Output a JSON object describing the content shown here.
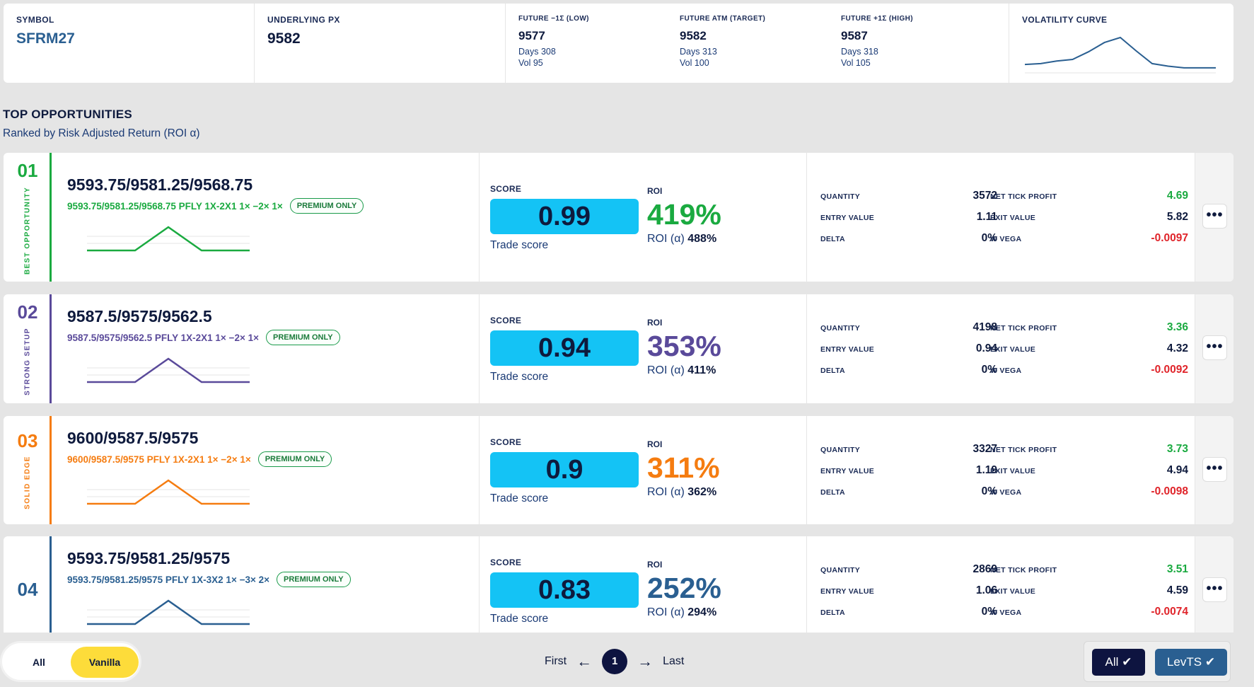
{
  "header": {
    "symbol_label": "SYMBOL",
    "symbol": "SFRM27",
    "underlying_label": "UNDERLYING PX",
    "underlying": "9582",
    "futures": [
      {
        "label": "FUTURE −1Σ (LOW)",
        "value": "9577",
        "days": "Days 308",
        "vol": "Vol 95"
      },
      {
        "label": "FUTURE ATM (TARGET)",
        "value": "9582",
        "days": "Days 313",
        "vol": "Vol 100"
      },
      {
        "label": "FUTURE +1Σ (HIGH)",
        "value": "9587",
        "days": "Days 318",
        "vol": "Vol 105"
      }
    ],
    "curve_label": "VOLATILITY CURVE",
    "curve_points": [
      10,
      11,
      14,
      16,
      25,
      36,
      42,
      26,
      11,
      8,
      6,
      6,
      6
    ]
  },
  "section": {
    "title": "TOP OPPORTUNITIES",
    "subtitle": "Ranked by Risk Adjusted Return (ROI α)"
  },
  "colors": {
    "green": "#1aaa40",
    "purple": "#5a4a9a",
    "orange": "#f57c10",
    "blue": "#2a5f91"
  },
  "cards": [
    {
      "rank": "01",
      "tag": "BEST OPPORTUNITY",
      "strikes": "9593.75/9581.25/9568.75",
      "desc": "9593.75/9581.25/9568.75 PFLY 1X-2X1 1× −2× 1×",
      "badge": "PREMIUM ONLY",
      "score_label": "SCORE",
      "score": "0.99",
      "score_caption": "Trade score",
      "roi_label": "ROI",
      "roi": "419%",
      "roi_a_label": "ROI (α)",
      "roi_a": "488%",
      "quantity_label": "QUANTITY",
      "quantity": "3572",
      "net_tick_profit_label": "NET TICK PROFIT",
      "net_tick_profit": "4.69",
      "entry_value_label": "ENTRY VALUE",
      "entry_value": "1.11",
      "exit_value_label": "EXIT VALUE",
      "exit_value": "5.82",
      "delta_label": "DELTA",
      "delta": "0%",
      "w_vega_label": "W VEGA",
      "w_vega": "-0.0097"
    },
    {
      "rank": "02",
      "tag": "STRONG SETUP",
      "strikes": "9587.5/9575/9562.5",
      "desc": "9587.5/9575/9562.5 PFLY 1X-2X1 1× −2× 1×",
      "badge": "PREMIUM ONLY",
      "score_label": "SCORE",
      "score": "0.94",
      "score_caption": "Trade score",
      "roi_label": "ROI",
      "roi": "353%",
      "roi_a_label": "ROI (α)",
      "roi_a": "411%",
      "quantity_label": "QUANTITY",
      "quantity": "4198",
      "net_tick_profit_label": "NET TICK PROFIT",
      "net_tick_profit": "3.36",
      "entry_value_label": "ENTRY VALUE",
      "entry_value": "0.94",
      "exit_value_label": "EXIT VALUE",
      "exit_value": "4.32",
      "delta_label": "DELTA",
      "delta": "0%",
      "w_vega_label": "W VEGA",
      "w_vega": "-0.0092"
    },
    {
      "rank": "03",
      "tag": "SOLID EDGE",
      "strikes": "9600/9587.5/9575",
      "desc": "9600/9587.5/9575 PFLY 1X-2X1 1× −2× 1×",
      "badge": "PREMIUM ONLY",
      "score_label": "SCORE",
      "score": "0.9",
      "score_caption": "Trade score",
      "roi_label": "ROI",
      "roi": "311%",
      "roi_a_label": "ROI (α)",
      "roi_a": "362%",
      "quantity_label": "QUANTITY",
      "quantity": "3327",
      "net_tick_profit_label": "NET TICK PROFIT",
      "net_tick_profit": "3.73",
      "entry_value_label": "ENTRY VALUE",
      "entry_value": "1.19",
      "exit_value_label": "EXIT VALUE",
      "exit_value": "4.94",
      "delta_label": "DELTA",
      "delta": "0%",
      "w_vega_label": "W VEGA",
      "w_vega": "-0.0098"
    },
    {
      "rank": "04",
      "tag": "",
      "strikes": "9593.75/9581.25/9575",
      "desc": "9593.75/9581.25/9575 PFLY 1X-3X2 1× −3× 2×",
      "badge": "PREMIUM ONLY",
      "score_label": "SCORE",
      "score": "0.83",
      "score_caption": "Trade score",
      "roi_label": "ROI",
      "roi": "252%",
      "roi_a_label": "ROI (α)",
      "roi_a": "294%",
      "quantity_label": "QUANTITY",
      "quantity": "2869",
      "net_tick_profit_label": "NET TICK PROFIT",
      "net_tick_profit": "3.51",
      "entry_value_label": "ENTRY VALUE",
      "entry_value": "1.06",
      "exit_value_label": "EXIT VALUE",
      "exit_value": "4.59",
      "delta_label": "DELTA",
      "delta": "0%",
      "w_vega_label": "W VEGA",
      "w_vega": "-0.0074"
    }
  ],
  "more_icon": "more-horizontal-icon",
  "footer": {
    "toggle": [
      {
        "label": "All",
        "active": false
      },
      {
        "label": "Vanilla",
        "active": true
      }
    ],
    "pager": {
      "first": "First",
      "page": "1",
      "last": "Last"
    },
    "filters": [
      {
        "label": "All",
        "check": "✔"
      },
      {
        "label": "LevTS",
        "check": "✔"
      }
    ]
  }
}
